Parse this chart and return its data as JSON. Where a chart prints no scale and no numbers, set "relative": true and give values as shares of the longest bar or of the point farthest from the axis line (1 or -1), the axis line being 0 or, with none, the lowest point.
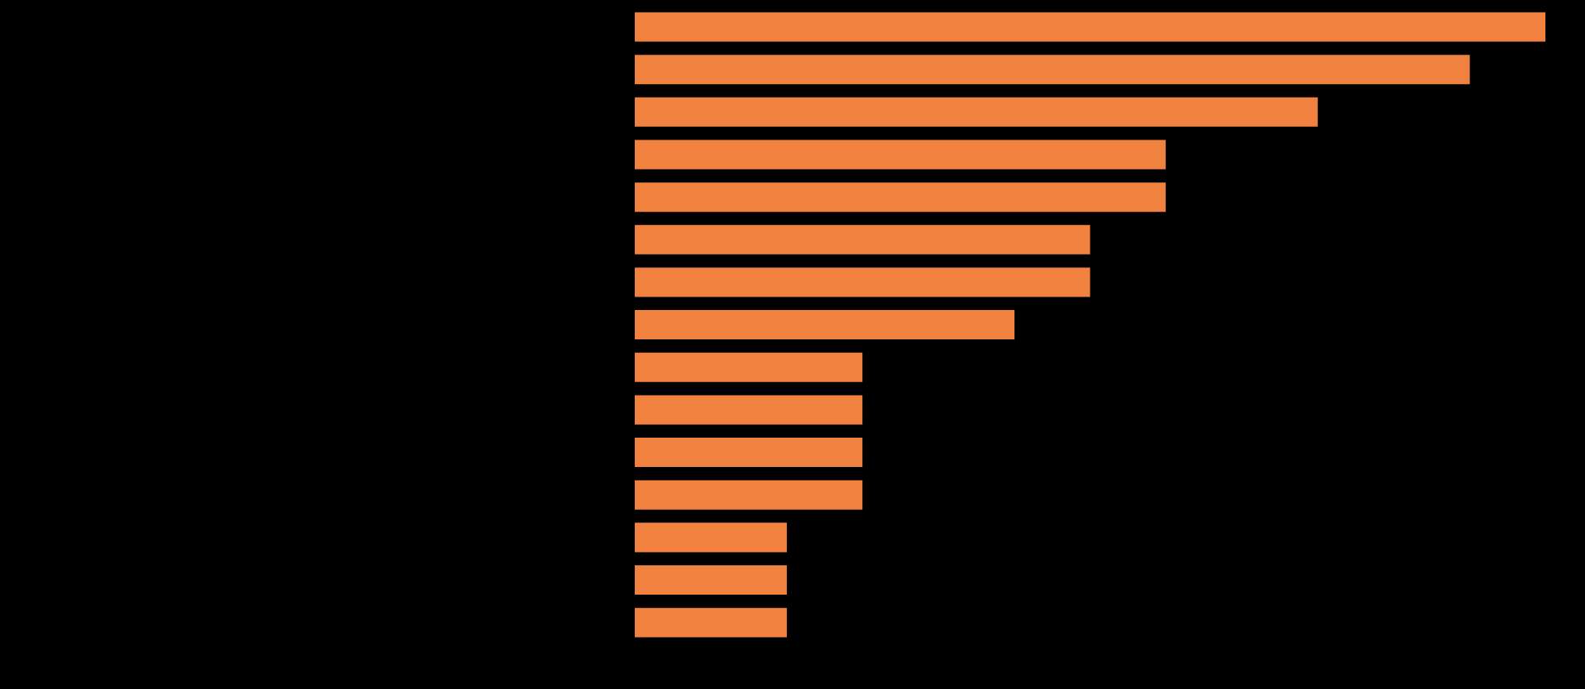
{
  "chart_data": {
    "type": "bar",
    "orientation": "horizontal",
    "relative": true,
    "categories": [
      null,
      null,
      null,
      null,
      null,
      null,
      null,
      null,
      null,
      null,
      null,
      null,
      null,
      null,
      null
    ],
    "values": [
      1,
      0.917,
      0.75,
      0.583,
      0.583,
      0.5,
      0.5,
      0.417,
      0.25,
      0.25,
      0.25,
      0.25,
      0.167,
      0.167,
      0.167
    ],
    "color": "#f0813e",
    "legend": false
  }
}
